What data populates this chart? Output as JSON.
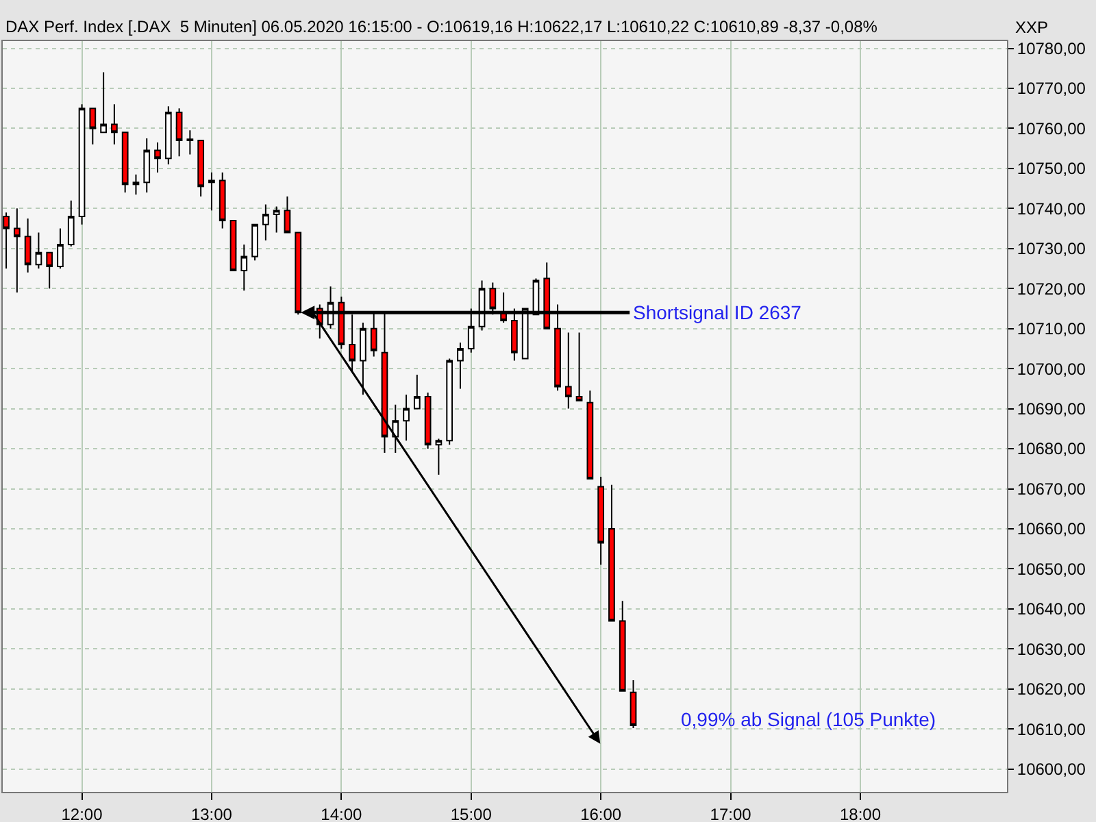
{
  "chart_data": {
    "type": "candlestick",
    "title": "DAX Perf. Index [.DAX  5 Minuten] 06.05.2020 16:15:00 - O:10619,16 H:10622,17 L:10610,22 C:10610,89 -8,37 -0,08%",
    "ylabel": "XXP",
    "x": [
      11.4167,
      11.5,
      11.5833,
      11.6667,
      11.75,
      11.8333,
      11.9167,
      12,
      12.0833,
      12.1667,
      12.25,
      12.3333,
      12.4167,
      12.5,
      12.5833,
      12.6667,
      12.75,
      12.8333,
      12.9167,
      13,
      13.0833,
      13.1667,
      13.25,
      13.3333,
      13.4167,
      13.5,
      13.5833,
      13.6667,
      13.8333,
      13.9167,
      14,
      14.0833,
      14.1667,
      14.25,
      14.3333,
      14.4167,
      14.5,
      14.5833,
      14.6667,
      14.75,
      14.8333,
      14.9167,
      15,
      15.0833,
      15.1667,
      15.25,
      15.3333,
      15.4167,
      15.5,
      15.5833,
      15.6667,
      15.75,
      15.8333,
      15.9167,
      16,
      16.0833,
      16.1667,
      16.25
    ],
    "ohlc": [
      [
        10738,
        10739,
        10725,
        10735
      ],
      [
        10735,
        10740,
        10719,
        10733
      ],
      [
        10733,
        10737.5,
        10724,
        10726
      ],
      [
        10726,
        10734,
        10725,
        10729
      ],
      [
        10729,
        10729,
        10720,
        10725.5
      ],
      [
        10725.5,
        10735,
        10725,
        10731
      ],
      [
        10731,
        10742,
        10730.5,
        10738
      ],
      [
        10738,
        10766,
        10736,
        10765
      ],
      [
        10765,
        10765,
        10756,
        10760
      ],
      [
        10759,
        10774,
        10759,
        10761
      ],
      [
        10761,
        10766,
        10756,
        10759
      ],
      [
        10759,
        10759,
        10744,
        10746
      ],
      [
        10746,
        10748.5,
        10743.5,
        10746.5
      ],
      [
        10746.5,
        10757.5,
        10744,
        10754.5
      ],
      [
        10754.5,
        10756.5,
        10749,
        10752.5
      ],
      [
        10752.5,
        10765.5,
        10751,
        10764
      ],
      [
        10764,
        10765,
        10753,
        10757
      ],
      [
        10757,
        10759.5,
        10753.5,
        10757.3
      ],
      [
        10757,
        10757,
        10743,
        10745.5
      ],
      [
        10746.5,
        10749,
        10739.5,
        10747
      ],
      [
        10747,
        10749,
        10735,
        10737
      ],
      [
        10737,
        10737,
        10724.5,
        10724.5
      ],
      [
        10724.5,
        10731,
        10719.5,
        10728
      ],
      [
        10728,
        10736,
        10727,
        10736
      ],
      [
        10736,
        10741,
        10732,
        10738.5
      ],
      [
        10738.5,
        10740.5,
        10734,
        10739.5
      ],
      [
        10739.5,
        10743,
        10734,
        10734
      ],
      [
        10734,
        10734,
        10713.5,
        10714
      ],
      [
        10715,
        10716,
        10707.5,
        10711
      ],
      [
        10711,
        10720.5,
        10710,
        10716.5
      ],
      [
        10716.5,
        10718,
        10705,
        10706
      ],
      [
        10706,
        10713.5,
        10699,
        10702
      ],
      [
        10702,
        10711.5,
        10693.5,
        10710
      ],
      [
        10710,
        10714,
        10703,
        10704.5
      ],
      [
        10704,
        10714,
        10679,
        10683
      ],
      [
        10683,
        10691,
        10679,
        10687
      ],
      [
        10687,
        10693.5,
        10682,
        10690
      ],
      [
        10690,
        10698.5,
        10690,
        10693
      ],
      [
        10693,
        10694,
        10680,
        10681
      ],
      [
        10681,
        10682.5,
        10673.5,
        10682
      ],
      [
        10682,
        10702.5,
        10681,
        10702
      ],
      [
        10702,
        10706.5,
        10695,
        10705
      ],
      [
        10705,
        10715,
        10704,
        10710.5
      ],
      [
        10710.5,
        10722,
        10709.5,
        10720
      ],
      [
        10720,
        10721.5,
        10713.5,
        10715
      ],
      [
        10714,
        10719,
        10711.5,
        10712
      ],
      [
        10712,
        10715,
        10702,
        10704
      ],
      [
        10702.5,
        10715,
        10702.5,
        10715
      ],
      [
        10713.5,
        10722.5,
        10713.5,
        10722
      ],
      [
        10722.5,
        10726.5,
        10710,
        10710
      ],
      [
        10710,
        10716,
        10694.5,
        10695.5
      ],
      [
        10695.5,
        10709,
        10690,
        10693
      ],
      [
        10693,
        10709,
        10692,
        10692
      ],
      [
        10691.5,
        10694.5,
        10672.5,
        10672.5
      ],
      [
        10670.5,
        10673,
        10651,
        10656.5
      ],
      [
        10660,
        10671,
        10637,
        10637
      ],
      [
        10637,
        10642,
        10619.5,
        10619.5
      ],
      [
        10619.16,
        10622.17,
        10610.22,
        10610.89
      ]
    ],
    "xlim": [
      11.39,
      19.13
    ],
    "xticks": [
      {
        "value": 12,
        "label": "12:00"
      },
      {
        "value": 13,
        "label": "13:00"
      },
      {
        "value": 14,
        "label": "14:00"
      },
      {
        "value": 15,
        "label": "15:00"
      },
      {
        "value": 16,
        "label": "16:00"
      },
      {
        "value": 17,
        "label": "17:00"
      },
      {
        "value": 18,
        "label": "18:00"
      }
    ],
    "ylim": [
      10594.3,
      10781.8
    ],
    "yticks": [
      {
        "value": 10600,
        "label": "10600,00"
      },
      {
        "value": 10610,
        "label": "10610,00"
      },
      {
        "value": 10620,
        "label": "10620,00"
      },
      {
        "value": 10630,
        "label": "10630,00"
      },
      {
        "value": 10640,
        "label": "10640,00"
      },
      {
        "value": 10650,
        "label": "10650,00"
      },
      {
        "value": 10660,
        "label": "10660,00"
      },
      {
        "value": 10670,
        "label": "10670,00"
      },
      {
        "value": 10680,
        "label": "10680,00"
      },
      {
        "value": 10690,
        "label": "10690,00"
      },
      {
        "value": 10700,
        "label": "10700,00"
      },
      {
        "value": 10710,
        "label": "10710,00"
      },
      {
        "value": 10720,
        "label": "10720,00"
      },
      {
        "value": 10730,
        "label": "10730,00"
      },
      {
        "value": 10740,
        "label": "10740,00"
      },
      {
        "value": 10750,
        "label": "10750,00"
      },
      {
        "value": 10760,
        "label": "10760,00"
      },
      {
        "value": 10770,
        "label": "10770,00"
      },
      {
        "value": 10780,
        "label": "10780,00"
      }
    ],
    "grid": true,
    "annotations": [
      {
        "text": "Shortsignal ID 2637",
        "x": 13.6667,
        "y": 10714
      },
      "0,99% ab Signal (105 Punkte)"
    ]
  }
}
